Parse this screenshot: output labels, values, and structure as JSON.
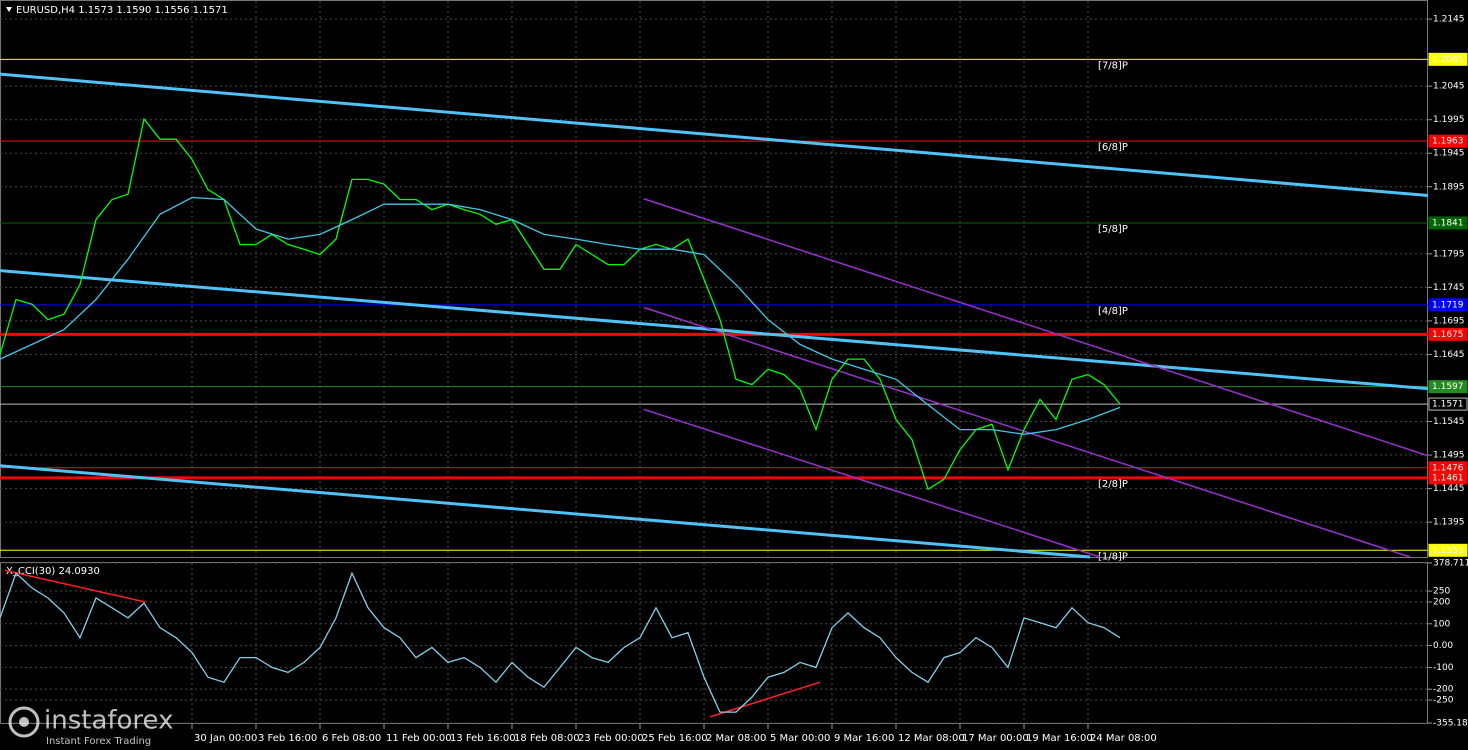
{
  "chart_data": [
    {
      "type": "line",
      "title": "EURUSD,H4  1.1573 1.1590 1.1556 1.1571",
      "xlim": [
        0,
        357
      ],
      "ylim": [
        1.1343,
        1.2172
      ],
      "grid": true,
      "yticks": [
        1.2145,
        1.2045,
        1.1995,
        1.1945,
        1.1895,
        1.1795,
        1.1745,
        1.1695,
        1.1645,
        1.1545,
        1.1495,
        1.1445,
        1.1395
      ],
      "xticks": [
        {
          "value": 48,
          "label": "30 Jan 00:00"
        },
        {
          "value": 64,
          "label": "3 Feb 16:00"
        },
        {
          "value": 80,
          "label": "6 Feb 08:00"
        },
        {
          "value": 96,
          "label": "11 Feb 00:00"
        },
        {
          "value": 112,
          "label": "13 Feb 16:00"
        },
        {
          "value": 128,
          "label": "18 Feb 08:00"
        },
        {
          "value": 144,
          "label": "23 Feb 00:00"
        },
        {
          "value": 160,
          "label": "25 Feb 16:00"
        },
        {
          "value": 176,
          "label": "2 Mar 08:00"
        },
        {
          "value": 192,
          "label": "5 Mar 00:00"
        },
        {
          "value": 208,
          "label": "9 Mar 16:00"
        },
        {
          "value": 224,
          "label": "12 Mar 08:00"
        },
        {
          "value": 240,
          "label": "17 Mar 00:00"
        },
        {
          "value": 256,
          "label": "19 Mar 16:00"
        },
        {
          "value": 272,
          "label": "24 Mar 08:00"
        }
      ],
      "series": [
        {
          "color": "#00ff00",
          "x": [
            0,
            4,
            8,
            12,
            16,
            20,
            24,
            28,
            32,
            36,
            40,
            44,
            48,
            52,
            56,
            60,
            64,
            68,
            72,
            76,
            80,
            84,
            88,
            92,
            96,
            100,
            104,
            108,
            112,
            116,
            120,
            124,
            128,
            132,
            136,
            140,
            144,
            148,
            152,
            156,
            160,
            164,
            168,
            172,
            176,
            180,
            184,
            188,
            192,
            196,
            200,
            204,
            208,
            212,
            216,
            220,
            224,
            228,
            232,
            236,
            240,
            244,
            248,
            252,
            256,
            260,
            264,
            268,
            272,
            276,
            280
          ],
          "values": [
            1.1645,
            1.1727,
            1.172,
            1.1697,
            1.1705,
            1.1749,
            1.1846,
            1.1876,
            1.1884,
            1.1996,
            1.1966,
            1.1966,
            1.1936,
            1.1891,
            1.1876,
            1.1809,
            1.1809,
            1.1824,
            1.1809,
            1.1802,
            1.1794,
            1.1817,
            1.1906,
            1.1906,
            1.1899,
            1.1876,
            1.1876,
            1.1861,
            1.1869,
            1.1861,
            1.1854,
            1.1839,
            1.1846,
            1.1809,
            1.1772,
            1.1772,
            1.1809,
            1.1794,
            1.1779,
            1.1779,
            1.1802,
            1.1809,
            1.1802,
            1.1817,
            1.1757,
            1.1697,
            1.1608,
            1.16,
            1.1623,
            1.1615,
            1.1593,
            1.1533,
            1.1608,
            1.1638,
            1.1638,
            1.1608,
            1.1548,
            1.1518,
            1.1444,
            1.1459,
            1.1503,
            1.1533,
            1.1541,
            1.1473,
            1.1533,
            1.1578,
            1.1548,
            1.1608,
            1.1615,
            1.16,
            1.1571
          ]
        },
        {
          "color": "#40c8e8",
          "x": [
            0,
            8,
            16,
            24,
            32,
            40,
            48,
            56,
            64,
            72,
            80,
            88,
            96,
            104,
            112,
            120,
            128,
            136,
            144,
            152,
            160,
            168,
            176,
            184,
            192,
            200,
            208,
            216,
            224,
            232,
            240,
            248,
            256,
            264,
            272,
            280
          ],
          "values": [
            1.1638,
            1.166,
            1.1682,
            1.1727,
            1.1787,
            1.1854,
            1.1879,
            1.1876,
            1.1832,
            1.1817,
            1.1824,
            1.1846,
            1.1869,
            1.1869,
            1.1869,
            1.1861,
            1.1846,
            1.1824,
            1.1817,
            1.1809,
            1.1802,
            1.1802,
            1.1794,
            1.1749,
            1.1697,
            1.166,
            1.1638,
            1.1623,
            1.1608,
            1.157,
            1.1533,
            1.1533,
            1.1526,
            1.1533,
            1.1548,
            1.1566
          ]
        }
      ],
      "lines": [
        {
          "color": "#4fc3f7",
          "width": 3,
          "x": [
            0,
            357
          ],
          "y": [
            1.2063,
            1.1882
          ]
        },
        {
          "color": "#4fc3f7",
          "width": 3,
          "x": [
            0,
            357
          ],
          "y": [
            1.177,
            1.1594
          ]
        },
        {
          "color": "#4fc3f7",
          "width": 3,
          "x": [
            0,
            272.5
          ],
          "y": [
            1.1479,
            1.1343
          ]
        },
        {
          "color": "#9932cc",
          "width": 1.5,
          "x": [
            161,
            357
          ],
          "y": [
            1.1877,
            1.1494
          ]
        },
        {
          "color": "#9932cc",
          "width": 1.5,
          "x": [
            161,
            352.5
          ],
          "y": [
            1.1715,
            1.1343
          ]
        },
        {
          "color": "#9932cc",
          "width": 1.5,
          "x": [
            161,
            275
          ],
          "y": [
            1.1563,
            1.1343
          ]
        }
      ],
      "levels": [
        {
          "value": 1.2085,
          "color": "#ffff00",
          "text_color": "#000",
          "width": 1,
          "label": "[7/8]P"
        },
        {
          "value": 1.1963,
          "color": "#ff0000",
          "text_color": "#888",
          "width": 1,
          "label": "[6/8]P"
        },
        {
          "value": 1.1841,
          "color": "#006400",
          "text_color": "#aaa",
          "width": 1,
          "label": "[5/8]P"
        },
        {
          "value": 1.1719,
          "color": "#0000ff",
          "text_color": "#aaa",
          "width": 1,
          "label": "[4/8]P"
        },
        {
          "value": 1.1675,
          "color": "#ff0000",
          "text_color": "#888",
          "width": 3
        },
        {
          "value": 1.1597,
          "color": "#228b22",
          "text_color": "#aaa",
          "width": 1
        },
        {
          "value": 1.1571,
          "color": "#c0c0c0",
          "text_color": "#fff",
          "width": 1
        },
        {
          "value": 1.1476,
          "color": "#ff0000",
          "text_color": "#888",
          "width": 1
        },
        {
          "value": 1.1461,
          "color": "#ff0000",
          "text_color": "#888",
          "width": 3,
          "label": "[2/8]P"
        },
        {
          "value": 1.1353,
          "color": "#ffff00",
          "text_color": "#000",
          "width": 1,
          "label": "[1/8]P"
        }
      ]
    },
    {
      "type": "line",
      "title": "X_CCI(30) 24.0930",
      "xlim": [
        0,
        357
      ],
      "ylim": [
        -355.1836,
        378.7116
      ],
      "grid": true,
      "yticks": [
        378.7116,
        250,
        200,
        100,
        {
          "value": 0,
          "label": "0.00"
        },
        -100,
        -200,
        -250,
        -355.1836
      ],
      "series": [
        {
          "color": "#87ceeb",
          "x": [
            0,
            4,
            8,
            12,
            16,
            20,
            24,
            28,
            32,
            36,
            40,
            44,
            48,
            52,
            56,
            60,
            64,
            68,
            72,
            76,
            80,
            84,
            88,
            92,
            96,
            100,
            104,
            108,
            112,
            116,
            120,
            124,
            128,
            132,
            136,
            140,
            144,
            148,
            152,
            156,
            160,
            164,
            168,
            172,
            176,
            180,
            184,
            188,
            192,
            196,
            200,
            204,
            208,
            212,
            216,
            220,
            224,
            228,
            232,
            236,
            240,
            244,
            248,
            252,
            256,
            260,
            264,
            268,
            272,
            276,
            280
          ],
          "values": [
            127,
            332,
            264,
            218,
            150,
            36,
            218,
            173,
            127,
            195,
            82,
            36,
            -32,
            -145,
            -168,
            -55,
            -55,
            -100,
            -123,
            -77,
            -9,
            127,
            332,
            173,
            82,
            36,
            -55,
            -9,
            -77,
            -55,
            -100,
            -168,
            -77,
            -145,
            -191,
            -100,
            -9,
            -55,
            -77,
            -9,
            36,
            173,
            36,
            59,
            -145,
            -305,
            -305,
            -236,
            -145,
            -123,
            -77,
            -100,
            82,
            150,
            82,
            36,
            -55,
            -123,
            -168,
            -55,
            -32,
            36,
            -9,
            -100,
            127,
            105,
            82,
            173,
            105,
            82,
            36
          ]
        }
      ],
      "lines": [
        {
          "color": "#ff2020",
          "width": 1.5,
          "x": [
            1.25,
            36.25
          ],
          "y": [
            345,
            200
          ]
        },
        {
          "color": "#ff2020",
          "width": 1.5,
          "x": [
            177.5,
            205
          ],
          "y": [
            -327,
            -168
          ]
        }
      ]
    }
  ],
  "logo": {
    "name": "instaforex",
    "tagline": "Instant Forex Trading"
  }
}
